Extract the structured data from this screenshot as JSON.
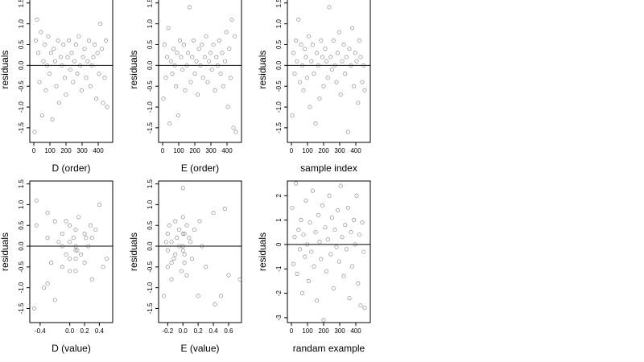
{
  "chart_data": [
    {
      "type": "scatter",
      "xlabel": "D (order)",
      "ylabel": "residuals",
      "reference_line": 0,
      "x": [
        5,
        12,
        20,
        28,
        35,
        44,
        52,
        60,
        68,
        75,
        83,
        90,
        98,
        107,
        115,
        124,
        132,
        140,
        150,
        158,
        167,
        175,
        184,
        192,
        200,
        210,
        218,
        226,
        235,
        244,
        252,
        262,
        270,
        280,
        288,
        297,
        306,
        315,
        325,
        334,
        342,
        352,
        360,
        370,
        378,
        388,
        396,
        405,
        414,
        422,
        430,
        440,
        448,
        455
      ],
      "y": [
        -1.6,
        0.6,
        1.1,
        0.3,
        -0.4,
        0.8,
        -1.2,
        0.1,
        0.5,
        -0.6,
        0.0,
        0.7,
        -0.2,
        0.3,
        -1.3,
        0.4,
        0.1,
        -0.5,
        0.6,
        -0.9,
        0.2,
        0.0,
        0.5,
        -0.3,
        -0.7,
        0.2,
        0.6,
        -0.1,
        0.3,
        -0.4,
        0.1,
        0.5,
        -0.2,
        0.7,
        0.0,
        -0.6,
        0.2,
        0.4,
        -0.3,
        0.1,
        0.6,
        -0.5,
        0.0,
        0.2,
        0.5,
        -0.8,
        0.3,
        -0.2,
        1.0,
        0.4,
        -0.9,
        -0.3,
        0.6,
        -1.0
      ],
      "xlim": [
        -25,
        490
      ],
      "ylim": [
        -1.85,
        1.65
      ],
      "xticks": [
        0,
        100,
        200,
        300,
        400
      ],
      "yticks": [
        -1.5,
        {
          "value": -1,
          "label": "-1.0"
        },
        -0.5,
        {
          "value": 0,
          "label": "0.0"
        },
        0.5,
        {
          "value": 1,
          "label": "1.0"
        },
        1.5
      ]
    },
    {
      "type": "scatter",
      "xlabel": "E (order)",
      "ylabel": "residuals",
      "reference_line": 0,
      "x": [
        5,
        12,
        20,
        28,
        35,
        44,
        52,
        60,
        68,
        75,
        83,
        90,
        98,
        107,
        115,
        124,
        132,
        140,
        150,
        158,
        167,
        175,
        184,
        192,
        200,
        210,
        218,
        226,
        235,
        244,
        252,
        262,
        270,
        280,
        288,
        297,
        306,
        315,
        325,
        334,
        342,
        352,
        360,
        370,
        378,
        388,
        396,
        405,
        414,
        422,
        430,
        440,
        448,
        455
      ],
      "y": [
        -0.8,
        0.5,
        -0.3,
        0.2,
        0.9,
        -1.4,
        0.1,
        -0.2,
        0.4,
        0.0,
        -0.5,
        0.3,
        -1.2,
        0.6,
        0.2,
        -0.1,
        0.5,
        -0.6,
        0.0,
        0.3,
        1.4,
        -0.4,
        0.2,
        0.6,
        -0.2,
        0.1,
        -0.7,
        0.4,
        0.0,
        0.5,
        -0.3,
        0.2,
        0.7,
        -0.4,
        0.1,
        0.3,
        -0.1,
        0.5,
        -0.6,
        0.2,
        0.0,
        0.6,
        -0.2,
        0.3,
        -0.5,
        0.1,
        0.8,
        -1.0,
        0.4,
        -0.3,
        1.1,
        -1.5,
        0.7,
        -1.6
      ],
      "xlim": [
        -25,
        490
      ],
      "ylim": [
        -1.85,
        1.65
      ],
      "xticks": [
        0,
        100,
        200,
        300,
        400
      ],
      "yticks": [
        -1.5,
        {
          "value": -1,
          "label": "-1.0"
        },
        -0.5,
        {
          "value": 0,
          "label": "0.0"
        },
        0.5,
        {
          "value": 1,
          "label": "1.0"
        },
        1.5
      ]
    },
    {
      "type": "scatter",
      "xlabel": "sample index",
      "ylabel": "residuals",
      "reference_line": 0,
      "x": [
        5,
        12,
        20,
        28,
        35,
        44,
        52,
        60,
        68,
        75,
        83,
        90,
        98,
        107,
        115,
        124,
        132,
        140,
        150,
        158,
        167,
        175,
        184,
        192,
        200,
        210,
        218,
        226,
        235,
        244,
        252,
        262,
        270,
        280,
        288,
        297,
        306,
        315,
        325,
        334,
        342,
        352,
        360,
        370,
        378,
        388,
        396,
        405,
        414,
        422,
        430,
        440,
        448,
        455
      ],
      "y": [
        -1.2,
        0.3,
        -0.2,
        0.6,
        0.1,
        1.1,
        -0.4,
        0.5,
        0.0,
        -0.6,
        0.4,
        0.2,
        -0.3,
        0.7,
        -1.0,
        0.1,
        0.5,
        -0.2,
        -1.4,
        0.3,
        0.0,
        -0.8,
        0.6,
        0.2,
        -0.5,
        0.4,
        0.1,
        -0.3,
        1.4,
        0.2,
        -0.1,
        0.6,
        0.0,
        -0.4,
        0.3,
        0.8,
        -0.7,
        0.1,
        0.5,
        -0.2,
        0.2,
        -1.6,
        0.4,
        0.0,
        0.9,
        -0.5,
        0.3,
        0.1,
        -0.9,
        0.6,
        0.2,
        -0.4,
        0.0,
        -0.6
      ],
      "xlim": [
        -25,
        490
      ],
      "ylim": [
        -1.85,
        1.65
      ],
      "xticks": [
        0,
        100,
        200,
        300,
        400
      ],
      "yticks": [
        -1.5,
        {
          "value": -1,
          "label": "-1.0"
        },
        -0.5,
        {
          "value": 0,
          "label": "0.0"
        },
        0.5,
        {
          "value": 1,
          "label": "1.0"
        },
        1.5
      ]
    },
    {
      "type": "scatter",
      "xlabel": "D (value)",
      "ylabel": "residuals",
      "reference_line": 0,
      "x": [
        -0.48,
        -0.45,
        -0.45,
        -0.3,
        -0.3,
        -0.3,
        -0.25,
        -0.2,
        -0.2,
        -0.15,
        -0.1,
        -0.1,
        -0.1,
        -0.05,
        0.0,
        0.0,
        0.0,
        0.0,
        0.05,
        0.08,
        0.08,
        0.08,
        0.08,
        0.12,
        0.15,
        0.2,
        0.2,
        0.25,
        0.28,
        0.3,
        0.3,
        0.35,
        0.4,
        0.45,
        0.5,
        -0.35,
        -0.05,
        0.08,
        0.1,
        0.22
      ],
      "y": [
        -1.5,
        0.5,
        1.1,
        0.8,
        -0.9,
        0.2,
        -0.4,
        0.6,
        -1.3,
        0.1,
        0.3,
        -0.5,
        0.0,
        -0.2,
        0.5,
        -0.6,
        0.1,
        -0.3,
        0.2,
        -0.3,
        -0.6,
        0.4,
        -0.1,
        0.7,
        -0.2,
        0.3,
        -0.4,
        0.0,
        0.5,
        0.2,
        -0.8,
        0.4,
        1.0,
        -0.5,
        -0.3,
        -1.0,
        0.6,
        0.0,
        -0.1,
        0.2
      ],
      "xlim": [
        -0.54,
        0.58
      ],
      "ylim": [
        -1.84,
        1.57
      ],
      "xticks": [
        -0.4,
        {
          "value": 0,
          "label": "0.0"
        },
        0.2,
        0.4
      ],
      "yticks": [
        -1.5,
        {
          "value": -1,
          "label": "-1.0"
        },
        -0.5,
        {
          "value": 0,
          "label": "0.0"
        },
        0.5,
        {
          "value": 1,
          "label": "1.0"
        },
        1.5
      ]
    },
    {
      "type": "scatter",
      "xlabel": "E (value)",
      "ylabel": "residuals",
      "reference_line": 0,
      "x": [
        -0.25,
        -0.2,
        -0.2,
        -0.2,
        -0.18,
        -0.15,
        -0.15,
        -0.12,
        -0.1,
        -0.1,
        -0.08,
        -0.05,
        -0.02,
        0.0,
        0.0,
        0.0,
        0.0,
        0.02,
        0.02,
        0.05,
        0.05,
        0.08,
        0.1,
        0.12,
        0.15,
        0.2,
        0.22,
        0.25,
        0.3,
        0.4,
        0.42,
        0.5,
        0.55,
        0.6,
        0.75,
        -0.22,
        -0.15,
        -0.05,
        0.0,
        0.02
      ],
      "y": [
        -1.2,
        0.3,
        -0.5,
        -0.1,
        0.5,
        -0.8,
        0.1,
        -0.3,
        0.6,
        -0.2,
        0.2,
        0.4,
        -0.6,
        1.4,
        0.7,
        -0.1,
        0.0,
        0.3,
        -0.4,
        0.5,
        -0.7,
        0.2,
        0.1,
        -0.3,
        0.4,
        -1.2,
        0.6,
        0.0,
        -0.5,
        0.8,
        -1.4,
        -1.2,
        0.9,
        -0.7,
        -0.8,
        0.1,
        -0.4,
        0.0,
        0.3,
        -0.2
      ],
      "xlim": [
        -0.32,
        0.77
      ],
      "ylim": [
        -1.84,
        1.57
      ],
      "xticks": [
        -0.2,
        {
          "value": 0,
          "label": "0.0"
        },
        0.2,
        0.4,
        0.6
      ],
      "yticks": [
        -1.5,
        {
          "value": -1,
          "label": "-1.0"
        },
        -0.5,
        {
          "value": 0,
          "label": "0.0"
        },
        0.5,
        {
          "value": 1,
          "label": "1.0"
        },
        1.5
      ]
    },
    {
      "type": "scatter",
      "xlabel": "randam example",
      "ylabel": "residuals",
      "reference_line": 0,
      "x": [
        5,
        12,
        20,
        28,
        35,
        44,
        52,
        60,
        68,
        75,
        83,
        90,
        98,
        107,
        115,
        124,
        132,
        140,
        150,
        158,
        167,
        175,
        184,
        192,
        200,
        210,
        218,
        226,
        235,
        244,
        252,
        262,
        270,
        280,
        288,
        297,
        306,
        315,
        325,
        334,
        342,
        352,
        360,
        370,
        378,
        388,
        396,
        405,
        414,
        422,
        430,
        440,
        448,
        455
      ],
      "y": [
        1.5,
        -0.8,
        0.3,
        2.5,
        -1.2,
        0.6,
        -0.2,
        1.0,
        -2.0,
        0.4,
        -0.5,
        1.8,
        0.0,
        -1.5,
        0.9,
        -0.3,
        2.2,
        -0.9,
        0.5,
        -2.3,
        1.2,
        0.1,
        -0.6,
        1.6,
        -3.1,
        0.7,
        -1.1,
        0.2,
        2.0,
        -0.4,
        1.1,
        -1.8,
        0.6,
        -0.1,
        1.4,
        -0.7,
        2.4,
        0.3,
        -1.3,
        0.8,
        -0.2,
        1.5,
        -2.2,
        0.5,
        -0.9,
        1.0,
        0.0,
        2.0,
        -1.6,
        0.4,
        -2.5,
        0.9,
        -0.3,
        -2.6
      ],
      "xlim": [
        -25,
        490
      ],
      "ylim": [
        -3.2,
        2.6
      ],
      "xticks": [
        0,
        100,
        200,
        300,
        400
      ],
      "yticks": [
        -3,
        -2,
        -1,
        0,
        1,
        2
      ]
    }
  ]
}
